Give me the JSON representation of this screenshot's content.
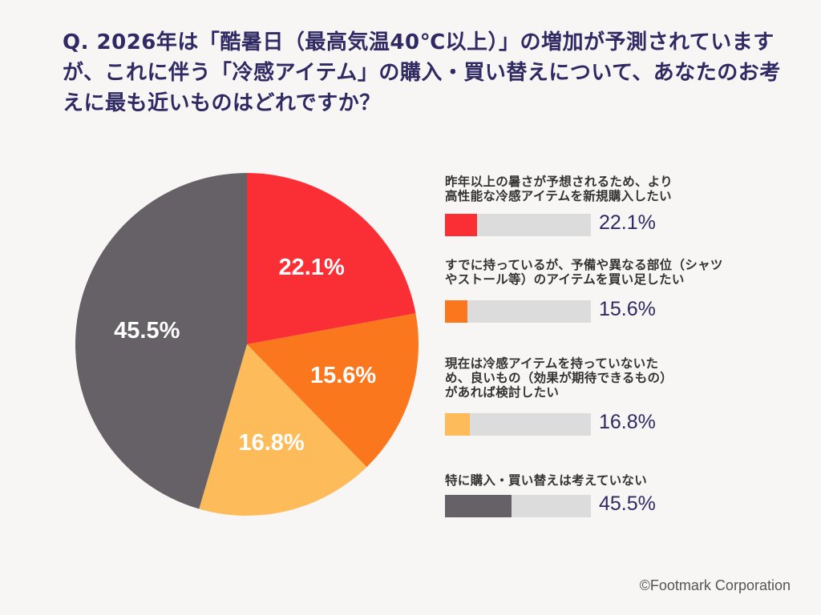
{
  "question": "Q. 2026年は「酷暑日（最高気温40℃以上）」の増加が予測されていますが、これに伴う「冷感アイテム」の購入・買い替えについて、あなたのお考えに最も近いものはどれですか？",
  "credit": "©Footmark Corporation",
  "chart_data": {
    "type": "pie",
    "categories": [
      "昨年以上の暑さが予想されるため、より高性能な冷感アイテムを新規購入したい",
      "すでに持っているが、予備や異なる部位（シャツやストール等）のアイテムを買い足したい",
      "現在は冷感アイテムを持っていないため、良いもの（効果が期待できるもの）があれば検討したい",
      "特に購入・買い替えは考えていない"
    ],
    "values": [
      22.1,
      15.6,
      16.8,
      45.5
    ],
    "value_labels": [
      "22.1%",
      "15.6%",
      "16.8%",
      "45.5%"
    ],
    "colors": [
      "#fa2f36",
      "#fa771d",
      "#fdbb5a",
      "#656166"
    ],
    "legend_position": "right"
  },
  "legend": [
    {
      "label_lines": [
        "昨年以上の暑さが予想されるため、より",
        "高性能な冷感アイテムを新規購入したい"
      ]
    },
    {
      "label_lines": [
        "すでに持っているが、予備や異なる部位（シャツ",
        "やストール等）のアイテムを買い足したい"
      ]
    },
    {
      "label_lines": [
        "現在は冷感アイテムを持っていないた",
        "め、良いもの（効果が期待できるもの）",
        "があれば検討したい"
      ]
    },
    {
      "label_lines": [
        "特に購入・買い替えは考えていない"
      ]
    }
  ]
}
